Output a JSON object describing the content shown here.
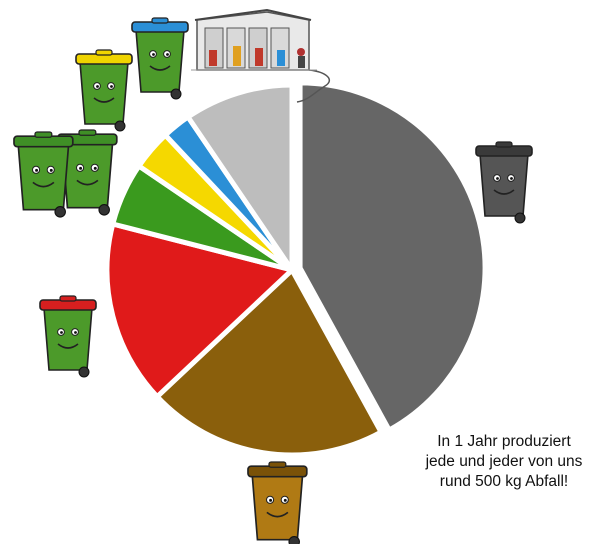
{
  "caption": {
    "line1": "In 1 Jahr produziert",
    "line2": "jede und jeder von uns",
    "line3": "rund 500 kg Abfall!"
  },
  "chart_data": {
    "type": "pie",
    "start_angle_deg": 0,
    "direction": "clockwise",
    "slices": [
      {
        "category": "black-bin",
        "value": 42.0,
        "color": "#666666",
        "explode": 0.045
      },
      {
        "category": "brown-bin",
        "value": 21.0,
        "color": "#8a5f0c",
        "explode": 0.0
      },
      {
        "category": "red-bin",
        "value": 16.0,
        "color": "#e01a1a",
        "explode": 0.0
      },
      {
        "category": "green-bin",
        "value": 5.5,
        "color": "#3a9a1e",
        "explode": 0.0
      },
      {
        "category": "yellow-bin",
        "value": 3.5,
        "color": "#f5d800",
        "explode": 0.0
      },
      {
        "category": "blue-bin",
        "value": 2.5,
        "color": "#2b8fd6",
        "explode": 0.0
      },
      {
        "category": "recycling-centre",
        "value": 9.5,
        "color": "#bdbdbd",
        "explode": 0.0
      }
    ]
  },
  "icons": {
    "bins": [
      {
        "name": "black-bin-icon",
        "lid": "#3a3a3a",
        "body": "#555555"
      },
      {
        "name": "brown-bin-icon",
        "lid": "#7a5208",
        "body": "#b07a14"
      },
      {
        "name": "red-bin-icon",
        "lid": "#d61f1f",
        "body": "#4c9a2a"
      },
      {
        "name": "green-bin-icon",
        "lid": "#3f8f26",
        "body": "#4c9a2a"
      },
      {
        "name": "yellow-bin-icon",
        "lid": "#f0d400",
        "body": "#4c9a2a"
      },
      {
        "name": "blue-bin-icon",
        "lid": "#2b8fd6",
        "body": "#4c9a2a"
      }
    ],
    "recycling_centre": "recycling-centre-icon"
  }
}
